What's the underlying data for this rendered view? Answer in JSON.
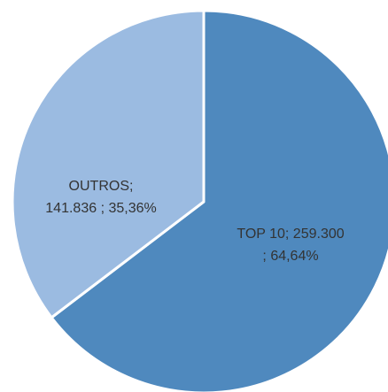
{
  "chart_data": {
    "type": "pie",
    "slices": [
      {
        "label": "TOP 10",
        "value": 259300,
        "percent": 64.64,
        "label_line1": "TOP 10;  259.300",
        "label_line2": "; 64,64%",
        "color": "#4f89be"
      },
      {
        "label": "OUTROS",
        "value": 141836,
        "percent": 35.36,
        "label_line1": "OUTROS;",
        "label_line2": "141.836 ; 35,36%",
        "color": "#9bbbe1"
      }
    ],
    "start_angle": "12 o'clock",
    "direction": "clockwise",
    "legend": "none"
  }
}
